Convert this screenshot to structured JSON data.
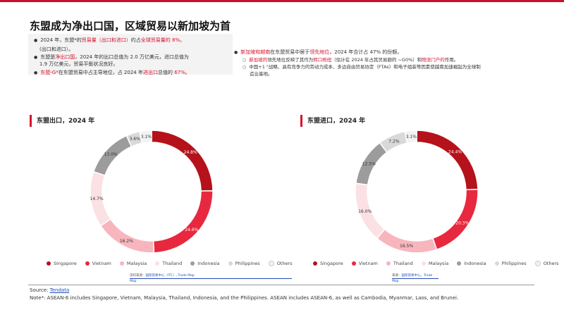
{
  "title": "东盟成为净出口国，区域贸易以新加坡为首",
  "left_bullets": {
    "b1_pre": "2024 年，东盟*的",
    "b1_red1": "贸易量（出口和进口）",
    "b1_mid": "约占",
    "b1_red2": "全球贸易量的 8%。",
    "b1_cont": "(出口和进口）。",
    "b2_pre": "东盟是",
    "b2_red": "净出口国",
    "b2_post": "，2024 年的出口总值为 2.0 万亿美元，进口总值为",
    "b2_cont": "1.9 万亿美元，贸易平衡状况良好。",
    "b3_red1": "东盟-G*",
    "b3_mid": "在东盟贸易中占主导地位，占 2024 年",
    "b3_red2": "进出口",
    "b3_mid2": "总值的 ",
    "b3_red3": "67%。"
  },
  "right_bullets": {
    "m_red": "新加坡和越南",
    "m_mid": "在东盟贸易中居于",
    "m_red2": "领先地位",
    "m_post": "，2024 年合计占 47% 的份额。",
    "s1_red": "新加坡的",
    "s1_mid": "领先地位反映了其作为",
    "s1_red2": "转口枢纽",
    "s1_mid2": "（估计在 2024 年占其贸易额的 ~G0%）和",
    "s1_red3": "物流门户的",
    "s1_post": "作用。",
    "s2_line1": "中国+1 \"战略、具有竞争力的劳动力成本、多边自由贸易协定（FTAs）和电子组装等因素使越南加速崛起为全球制",
    "s2_line2": "造业基地。"
  },
  "export_chart_title": "东盟出口，2024 年",
  "import_chart_title": "东盟进口，2024 年",
  "export_source": {
    "label": "资料来源：",
    "link1": "国际贸易中心（ITC）, Trade Map",
    "link2": "Map"
  },
  "import_source": {
    "label": "来源：",
    "link1": "国际贸易中心，Trade",
    "link2": "Map"
  },
  "footer": {
    "source_label": "Source: ",
    "source_link": "Tendata",
    "note": "Note*: ASEAN-6 includes Singapore, Vietnam, Malaysia, Thailand, Indonesia, and the Philippines. ASEAN includes ASEAN-6, as well as  Cambodia, Myanmar, Laos, and Brunei."
  },
  "chart_data": [
    {
      "type": "pie",
      "title": "东盟出口，2024 年",
      "categories": [
        "Singapore",
        "Vietnam",
        "Malaysia",
        "Thailand",
        "Indonesia",
        "Philippines",
        "Others"
      ],
      "values": [
        24.8,
        24.6,
        16.2,
        14.7,
        13.0,
        3.6,
        3.1
      ],
      "labels": [
        "24.8%",
        "24.6%",
        "16.2%",
        "14.7%",
        "13.0%",
        "3.6%",
        "3.1%"
      ],
      "colors": [
        "#b5121b",
        "#e8283e",
        "#f7b6bd",
        "#fbe1e3",
        "#9c9c9c",
        "#d9d9d9",
        "#f2f2f2"
      ],
      "legend": "bottom"
    },
    {
      "type": "pie",
      "title": "东盟进口，2024 年",
      "categories": [
        "Singapore",
        "Vietnam",
        "Thailand",
        "Malaysia",
        "Indonesia",
        "Philippines",
        "Others"
      ],
      "values": [
        24.4,
        20.3,
        16.5,
        16.0,
        12.5,
        7.2,
        3.1
      ],
      "labels": [
        "24.4%",
        "20.3%",
        "16.5%",
        "16.0%",
        "12.5%",
        "7.2%",
        "3.1%"
      ],
      "colors": [
        "#b5121b",
        "#e8283e",
        "#f7b6bd",
        "#fbe1e3",
        "#9c9c9c",
        "#d9d9d9",
        "#f2f2f2"
      ],
      "legend": "bottom"
    }
  ]
}
